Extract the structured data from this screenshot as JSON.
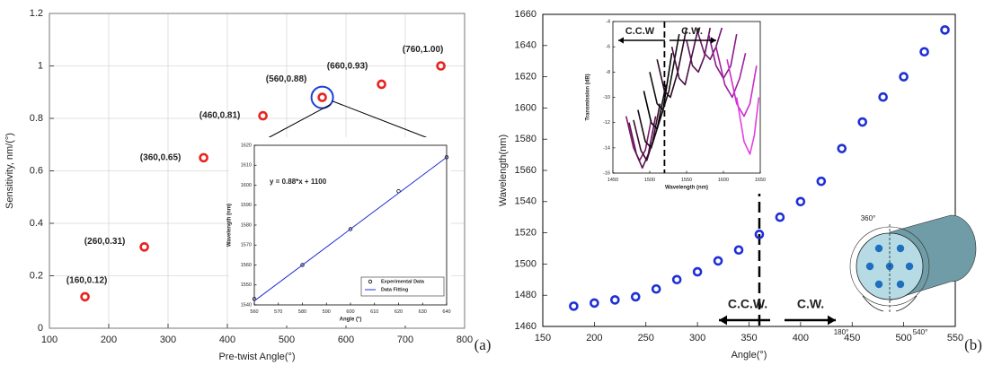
{
  "chart_data": [
    {
      "type": "scatter",
      "panel_label": "(a)",
      "xlabel": "Pre-twist Angle(°)",
      "ylabel": "Sensitivity, nm/(°)",
      "xlim": [
        100,
        800
      ],
      "xticks": [
        100,
        200,
        300,
        400,
        500,
        600,
        700,
        800
      ],
      "ylim": [
        0,
        1.2
      ],
      "yticks": [
        0,
        0.2,
        0.4,
        0.6,
        0.8,
        1,
        1.2
      ],
      "grid": true,
      "highlight": 4,
      "highlight_color": "#1f3fd6",
      "series": [
        {
          "color": "#e8231f",
          "marker": "ring",
          "x": [
            160,
            260,
            360,
            460,
            560,
            660,
            760
          ],
          "values": [
            0.12,
            0.31,
            0.65,
            0.81,
            0.88,
            0.93,
            1.0
          ],
          "value_labels": [
            "(160,0.12)",
            "(260,0.31)",
            "(360,0.65)",
            "(460,0.81)",
            "(560,0.88)",
            "(660,0.93)",
            "(760,1.00)"
          ]
        }
      ]
    },
    {
      "type": "scatter",
      "xlabel": "Angle (°)",
      "ylabel": "Wavelength (nm)",
      "xlim": [
        560,
        640
      ],
      "xticks": [
        560,
        570,
        580,
        590,
        600,
        610,
        620,
        630,
        640
      ],
      "ylim": [
        1540,
        1620
      ],
      "yticks": [
        1540,
        1550,
        1560,
        1570,
        1580,
        1590,
        1600,
        1610,
        1620
      ],
      "grid": false,
      "legend": "lower right",
      "annotations": [
        "y = 0.88*x + 1100"
      ],
      "series": [
        {
          "name": "Experimental Data",
          "color": "#000000",
          "marker": "circle",
          "x": [
            560,
            580,
            600,
            620,
            640
          ],
          "values": [
            1543,
            1560,
            1578,
            1597,
            1614
          ]
        },
        {
          "name": "Data Fitting",
          "color": "#1f2fd6",
          "line": true,
          "x": [
            560,
            640
          ],
          "values": [
            1542,
            1614
          ]
        }
      ]
    },
    {
      "type": "scatter",
      "panel_label": "(b)",
      "xlabel": "Angle(°)",
      "ylabel": "Wavelength(nm)",
      "xlim": [
        150,
        550
      ],
      "xticks": [
        150,
        200,
        250,
        300,
        350,
        400,
        450,
        500,
        550
      ],
      "ylim": [
        1460,
        1660
      ],
      "yticks": [
        1460,
        1480,
        1500,
        1520,
        1540,
        1560,
        1580,
        1600,
        1620,
        1640,
        1660
      ],
      "grid": false,
      "divider_x": 360,
      "annotations": [
        "C.C.W.",
        "C.W.",
        "360°",
        "180°",
        "540°"
      ],
      "series": [
        {
          "color": "#1f2fd6",
          "marker": "ring",
          "x": [
            180,
            200,
            220,
            240,
            260,
            280,
            300,
            320,
            340,
            360,
            380,
            400,
            420,
            440,
            460,
            480,
            500,
            520,
            540
          ],
          "values": [
            1473,
            1475,
            1477,
            1479,
            1484,
            1490,
            1495,
            1502,
            1509,
            1519,
            1530,
            1540,
            1553,
            1574,
            1591,
            1607,
            1620,
            1636,
            1650
          ]
        }
      ]
    },
    {
      "type": "line",
      "xlabel": "Wavelength (nm)",
      "ylabel": "Transmission (dB)",
      "xlim": [
        1450,
        1650
      ],
      "xticks": [
        1450,
        1500,
        1550,
        1600,
        1650
      ],
      "ylim": [
        -16,
        -4
      ],
      "yticks": [
        -16,
        -14,
        -12,
        -10,
        -8,
        -6,
        -4
      ],
      "grid": false,
      "divider_x": 1520,
      "annotations": [
        "C.C.W",
        "C.W."
      ],
      "series": [
        {
          "color": "#7a1a6a",
          "line": true,
          "x": [
            1468,
            1478,
            1486,
            1494,
            1502
          ],
          "values": [
            -11.5,
            -14,
            -15,
            -14.2,
            -11.8
          ]
        },
        {
          "color": "#5a1050",
          "line": true,
          "x": [
            1472,
            1482,
            1490,
            1498,
            1508
          ],
          "values": [
            -12,
            -14.5,
            -15.6,
            -14.5,
            -11.5
          ]
        },
        {
          "color": "#3a0a30",
          "line": true,
          "x": [
            1478,
            1488,
            1496,
            1504,
            1514
          ],
          "values": [
            -11.8,
            -14.2,
            -15,
            -13.5,
            -10.5
          ]
        },
        {
          "color": "#1a0a14",
          "line": true,
          "x": [
            1484,
            1494,
            1502,
            1510,
            1522
          ],
          "values": [
            -11,
            -13.5,
            -14,
            -12.5,
            -9
          ]
        },
        {
          "color": "#000000",
          "line": true,
          "x": [
            1492,
            1502,
            1510,
            1518,
            1530
          ],
          "values": [
            -9.5,
            -12,
            -12.5,
            -11,
            -6.5
          ]
        },
        {
          "color": "#111111",
          "line": true,
          "x": [
            1500,
            1510,
            1518,
            1526,
            1540
          ],
          "values": [
            -8,
            -10.5,
            -11,
            -9.5,
            -5
          ]
        },
        {
          "color": "#2a0a22",
          "line": true,
          "x": [
            1510,
            1520,
            1528,
            1538,
            1550
          ],
          "values": [
            -7,
            -9.5,
            -10,
            -8,
            -4.5
          ]
        },
        {
          "color": "#4a0c40",
          "line": true,
          "x": [
            1530,
            1540,
            1548,
            1556,
            1566
          ],
          "values": [
            -6,
            -8.5,
            -9,
            -7,
            -4.5
          ]
        },
        {
          "color": "#5e1258",
          "line": true,
          "x": [
            1550,
            1558,
            1566,
            1574,
            1582
          ],
          "values": [
            -5.5,
            -7.5,
            -8,
            -6.8,
            -4.5
          ]
        },
        {
          "color": "#701670",
          "line": true,
          "x": [
            1566,
            1574,
            1582,
            1590,
            1598
          ],
          "values": [
            -5,
            -6.5,
            -7,
            -6,
            -4.5
          ]
        },
        {
          "color": "#8a1a88",
          "line": true,
          "x": [
            1580,
            1590,
            1600,
            1610,
            1618
          ],
          "values": [
            -5,
            -7.5,
            -8.5,
            -7.5,
            -5
          ]
        },
        {
          "color": "#a020a0",
          "line": true,
          "x": [
            1590,
            1602,
            1612,
            1622,
            1630
          ],
          "values": [
            -6,
            -9,
            -10,
            -8.5,
            -6.5
          ]
        },
        {
          "color": "#cc2ccc",
          "line": true,
          "x": [
            1605,
            1618,
            1628,
            1636,
            1645
          ],
          "values": [
            -7,
            -10.5,
            -11.5,
            -10.5,
            -7.5
          ]
        },
        {
          "color": "#e040e0",
          "line": true,
          "x": [
            1618,
            1628,
            1636,
            1642,
            1648
          ],
          "values": [
            -10,
            -13.5,
            -14.5,
            -13,
            -10
          ]
        }
      ]
    }
  ]
}
